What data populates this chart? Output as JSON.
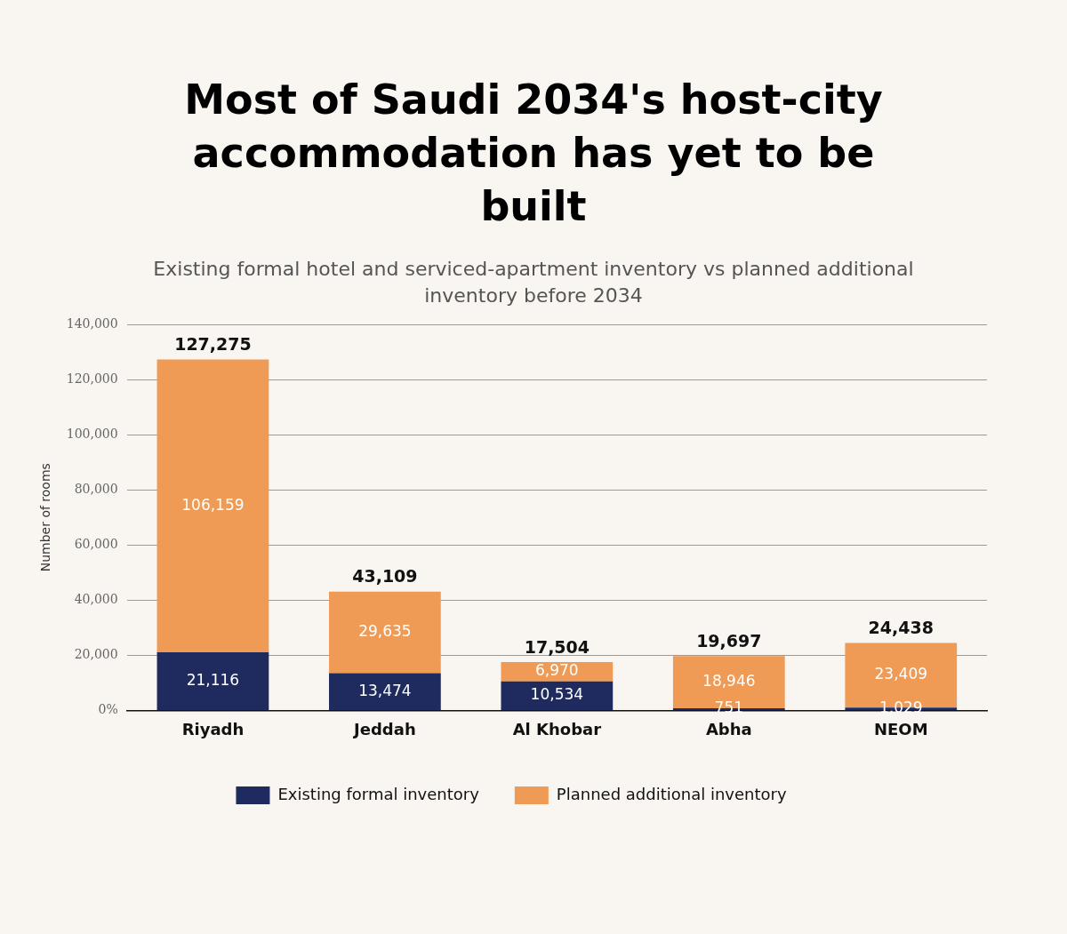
{
  "chart_data": {
    "type": "bar",
    "title": "Most of Saudi 2034's host-city accommodation has yet to be built",
    "subtitle": "Existing formal hotel and serviced-apartment inventory vs planned additional inventory before 2034",
    "ylabel": "Number of rooms",
    "categories": [
      "Riyadh",
      "Jeddah",
      "Al Khobar",
      "Abha",
      "NEOM"
    ],
    "stacked": true,
    "series": [
      {
        "name": "Existing formal inventory",
        "color": "#1f2a5e",
        "values": [
          21116,
          13474,
          10534,
          751,
          1029
        ],
        "value_labels": [
          "21,116",
          "13,474",
          "10,534",
          "751",
          "1,029"
        ]
      },
      {
        "name": "Planned additional inventory",
        "color": "#ef9a55",
        "values": [
          106159,
          29635,
          6970,
          18946,
          23409
        ],
        "value_labels": [
          "106,159",
          "29,635",
          "6,970",
          "18,946",
          "23,409"
        ]
      }
    ],
    "totals": [
      "127,275",
      "43,109",
      "17,504",
      "19,697",
      "24,438"
    ],
    "ylim": [
      0,
      140000
    ],
    "yticks": [
      {
        "value": 0,
        "label": "0%"
      },
      {
        "value": 20000,
        "label": "20,000"
      },
      {
        "value": 40000,
        "label": "40,000"
      },
      {
        "value": 60000,
        "label": "60,000"
      },
      {
        "value": 80000,
        "label": "80,000"
      },
      {
        "value": 100000,
        "label": "100,000"
      },
      {
        "value": 120000,
        "label": "120,000"
      },
      {
        "value": 140000,
        "label": "140,000"
      }
    ],
    "grid": "y",
    "legend": "bottom"
  }
}
